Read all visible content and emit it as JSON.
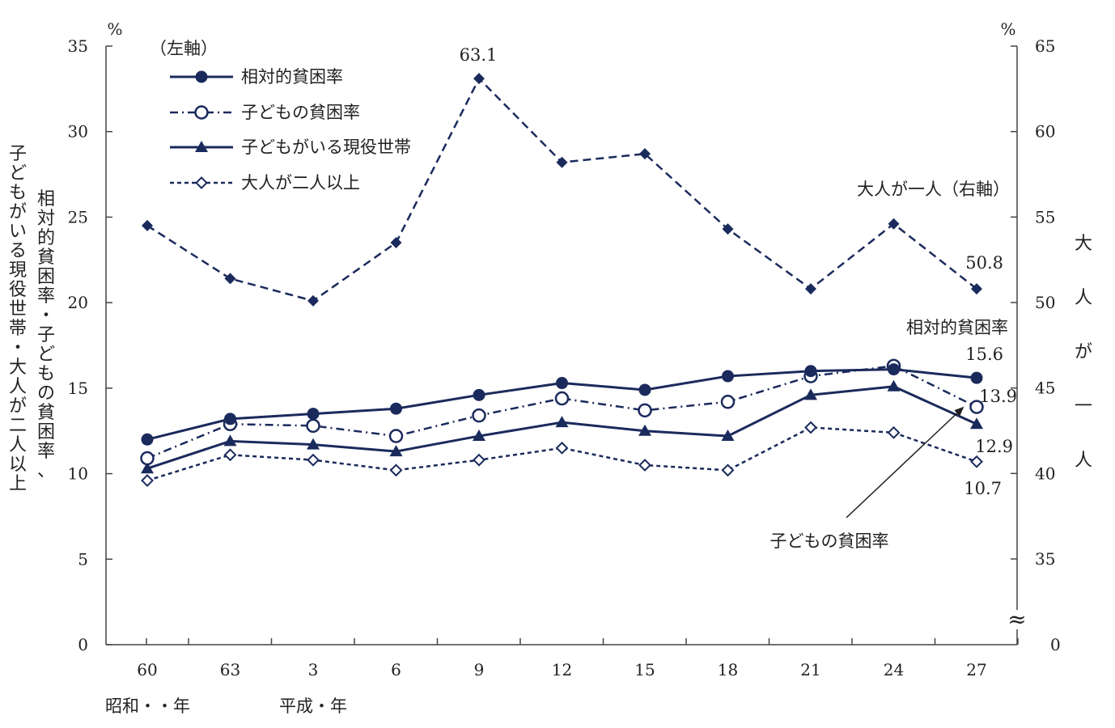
{
  "chart_data": {
    "type": "line",
    "left_axis": {
      "unit": "%",
      "ylim": [
        0,
        35
      ],
      "ticks": [
        "0",
        "5",
        "10",
        "15",
        "20",
        "25",
        "30",
        "35"
      ],
      "title": "相対的貧困率・子どもの貧困率、子どもがいる現役世帯・大人が二人以上"
    },
    "right_axis": {
      "unit": "%",
      "ylim": [
        35,
        65
      ],
      "zero_label": "0",
      "break_mark": "≈",
      "ticks": [
        "35",
        "40",
        "45",
        "50",
        "55",
        "60",
        "65"
      ],
      "title": "大人が一人"
    },
    "x_ticks": [
      "60",
      "63",
      "3",
      "6",
      "9",
      "12",
      "15",
      "18",
      "21",
      "24",
      "27"
    ],
    "era_labels": [
      "昭和・・年",
      "平成・年"
    ],
    "legend": {
      "header": "（左軸）",
      "position": "top-left"
    },
    "series": [
      {
        "name": "相対的貧困率",
        "axis": "left",
        "color": "#1b2a5c",
        "style": "solid",
        "marker": "filled-circle",
        "values": [
          12.0,
          13.2,
          13.5,
          13.8,
          14.6,
          15.3,
          14.9,
          15.7,
          16.0,
          16.1,
          15.6
        ]
      },
      {
        "name": "子どもの貧困率",
        "axis": "left",
        "color": "#1b2a5c",
        "style": "dashdot",
        "marker": "open-circle",
        "values": [
          10.9,
          12.9,
          12.8,
          12.2,
          13.4,
          14.4,
          13.7,
          14.2,
          15.7,
          16.3,
          13.9
        ]
      },
      {
        "name": "子どもがいる現役世帯",
        "axis": "left",
        "color": "#1b2a5c",
        "style": "solid",
        "marker": "filled-triangle",
        "values": [
          10.3,
          11.9,
          11.7,
          11.3,
          12.2,
          13.0,
          12.5,
          12.2,
          14.6,
          15.1,
          12.9
        ]
      },
      {
        "name": "大人が二人以上",
        "axis": "left",
        "color": "#1b2a5c",
        "style": "dotted",
        "marker": "open-diamond",
        "values": [
          9.6,
          11.1,
          10.8,
          10.2,
          10.8,
          11.5,
          10.5,
          10.2,
          12.7,
          12.4,
          10.7
        ]
      },
      {
        "name": "大人が一人",
        "axis": "right",
        "color": "#1b2a5c",
        "style": "dashed",
        "marker": "filled-diamond",
        "values": [
          54.5,
          51.4,
          50.1,
          53.5,
          63.1,
          58.2,
          58.7,
          54.3,
          50.8,
          54.6,
          50.8
        ]
      }
    ],
    "annotations": {
      "peak": "63.1",
      "single_adult_series_label": "大人が一人（右軸）",
      "single_adult_end": "50.8",
      "relative_label": "相対的貧困率",
      "relative_end": "15.6",
      "child_end": "13.9",
      "working_end": "12.9",
      "two_adult_end": "10.7",
      "child_pointer_label": "子どもの貧困率"
    }
  }
}
